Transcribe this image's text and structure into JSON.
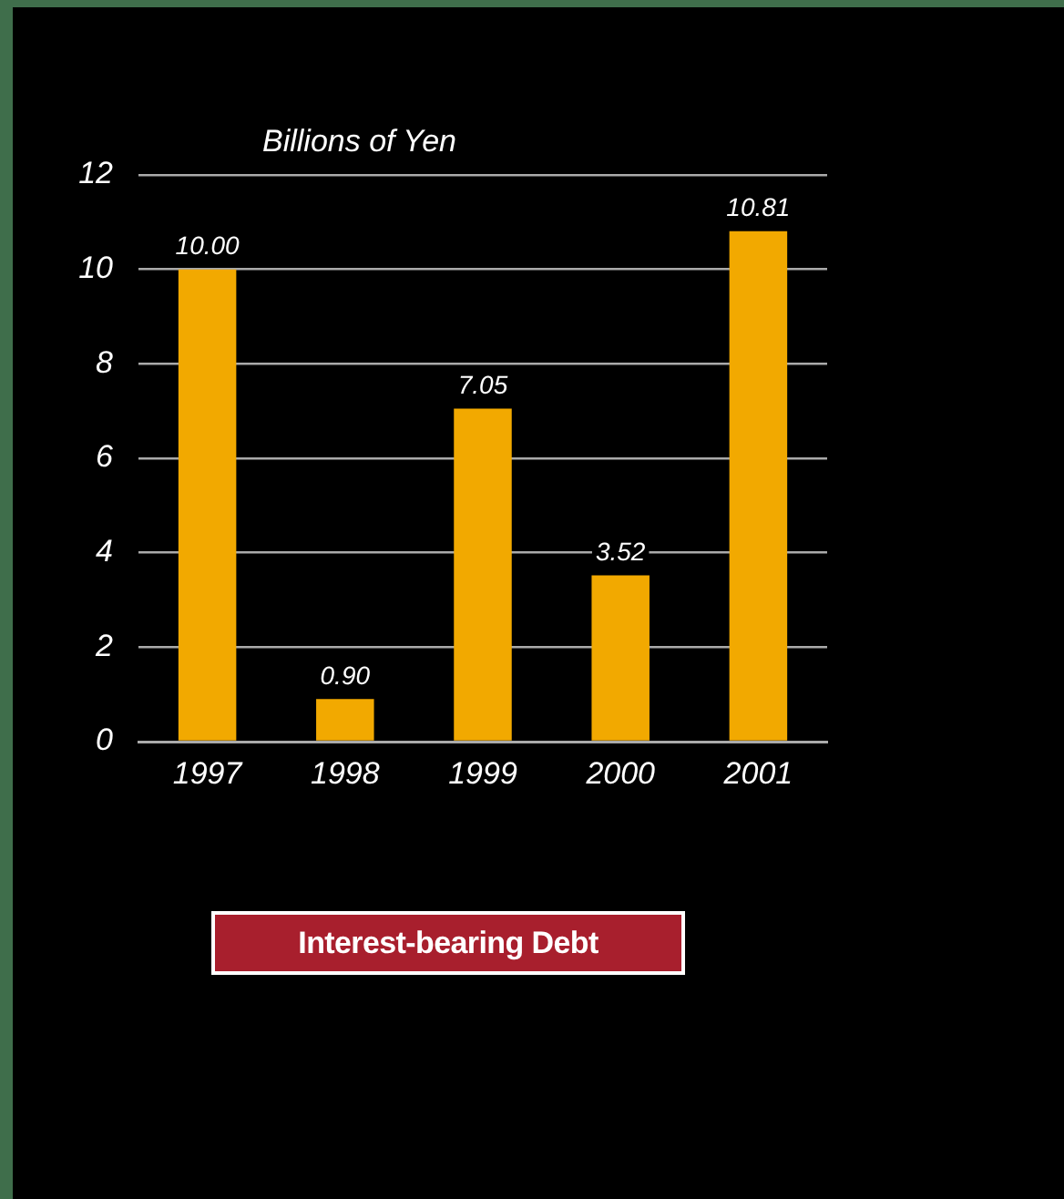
{
  "chart_data": {
    "type": "bar",
    "title": "Interest-bearing Debt",
    "ylabel": "Billions of Yen",
    "categories": [
      "1997",
      "1998",
      "1999",
      "2000",
      "2001"
    ],
    "values": [
      10.0,
      0.9,
      7.05,
      3.52,
      10.81
    ],
    "color": "#f2a900",
    "value_labels": [
      "10.00",
      "0.90",
      "7.05",
      "3.52",
      "10.81"
    ],
    "ylim": [
      0,
      12
    ],
    "yticks": [
      0,
      2,
      4,
      6,
      8,
      10,
      12
    ],
    "grid": "y"
  }
}
